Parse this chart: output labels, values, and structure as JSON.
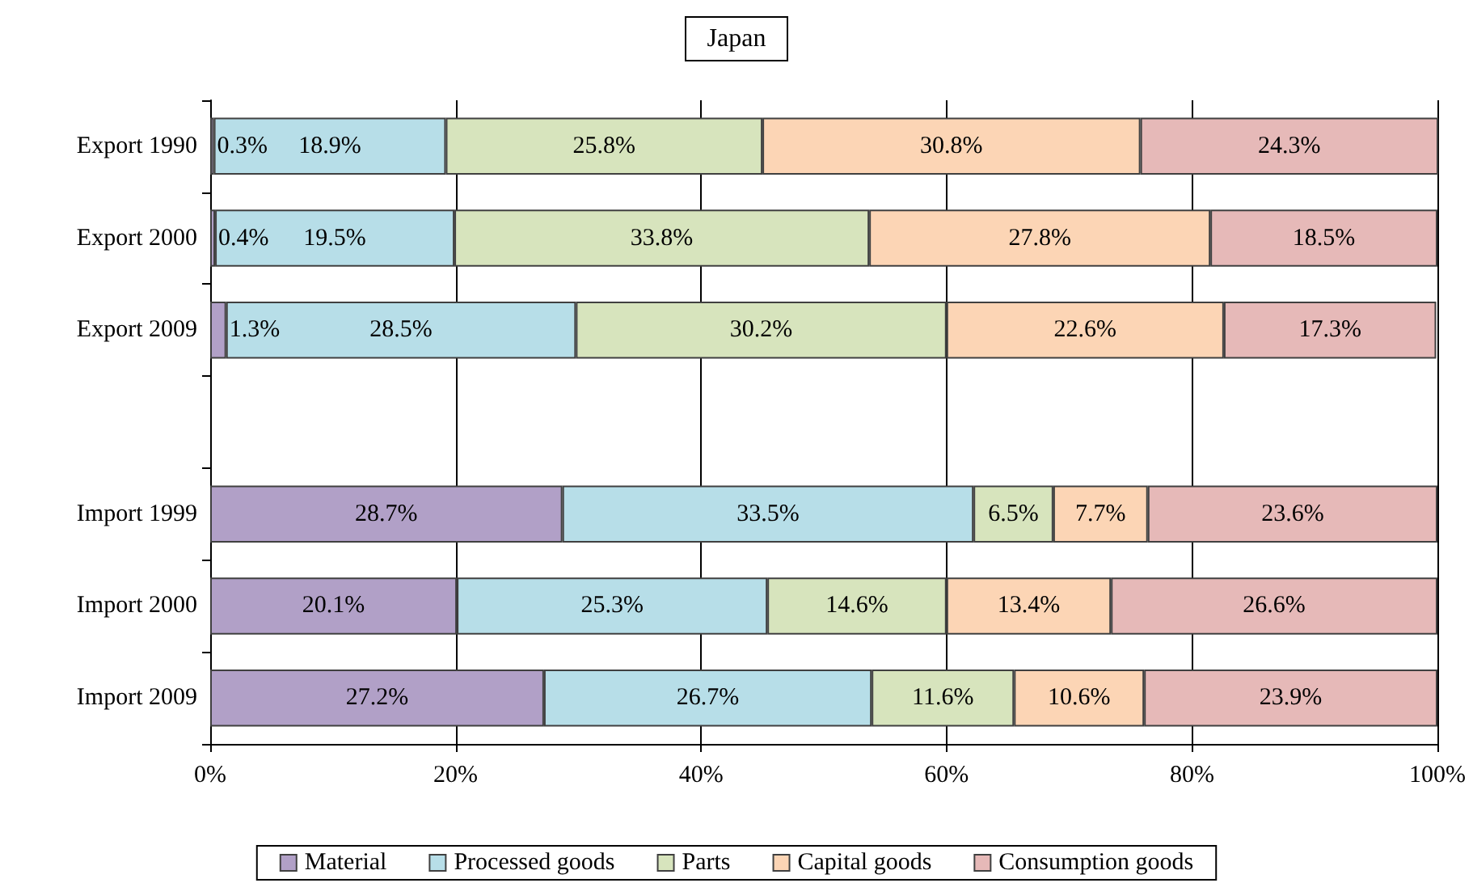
{
  "chart_data": {
    "type": "bar",
    "orientation": "horizontal",
    "stacked": true,
    "title": "Japan",
    "categories": [
      "Export 1990",
      "Export 2000",
      "Export 2009",
      null,
      "Import 1999",
      "Import 2000",
      "Import 2009"
    ],
    "series": [
      {
        "name": "Material",
        "color": "#b1a0c7",
        "values": [
          0.3,
          0.4,
          1.3,
          null,
          28.7,
          20.1,
          27.2
        ],
        "value_labels": [
          "0.3%",
          "0.4%",
          "1.3%",
          null,
          "28.7%",
          "20.1%",
          "27.2%"
        ]
      },
      {
        "name": "Processed goods",
        "color": "#b7dee8",
        "values": [
          18.9,
          19.5,
          28.5,
          null,
          33.5,
          25.3,
          26.7
        ],
        "value_labels": [
          "18.9%",
          "19.5%",
          "28.5%",
          null,
          "33.5%",
          "25.3%",
          "26.7%"
        ]
      },
      {
        "name": "Parts",
        "color": "#d7e4bd",
        "values": [
          25.8,
          33.8,
          30.2,
          null,
          6.5,
          14.6,
          11.6
        ],
        "value_labels": [
          "25.8%",
          "33.8%",
          "30.2%",
          null,
          "6.5%",
          "14.6%",
          "11.6%"
        ]
      },
      {
        "name": "Capital goods",
        "color": "#fcd5b5",
        "values": [
          30.8,
          27.8,
          22.6,
          null,
          7.7,
          13.4,
          10.6
        ],
        "value_labels": [
          "30.8%",
          "27.8%",
          "22.6%",
          null,
          "7.7%",
          "13.4%",
          "10.6%"
        ]
      },
      {
        "name": "Consumption goods",
        "color": "#e6b9b8",
        "values": [
          24.3,
          18.5,
          17.3,
          null,
          23.6,
          26.6,
          23.9
        ],
        "value_labels": [
          "24.3%",
          "18.5%",
          "17.3%",
          null,
          "23.6%",
          "26.6%",
          "23.9%"
        ]
      }
    ],
    "xlim": [
      0,
      100
    ],
    "xticks": [
      {
        "value": 0,
        "label": "0%"
      },
      {
        "value": 20,
        "label": "20%"
      },
      {
        "value": 40,
        "label": "40%"
      },
      {
        "value": 60,
        "label": "60%"
      },
      {
        "value": 80,
        "label": "80%"
      },
      {
        "value": 100,
        "label": "100%"
      }
    ],
    "grid": "x",
    "legend": "bottom"
  }
}
